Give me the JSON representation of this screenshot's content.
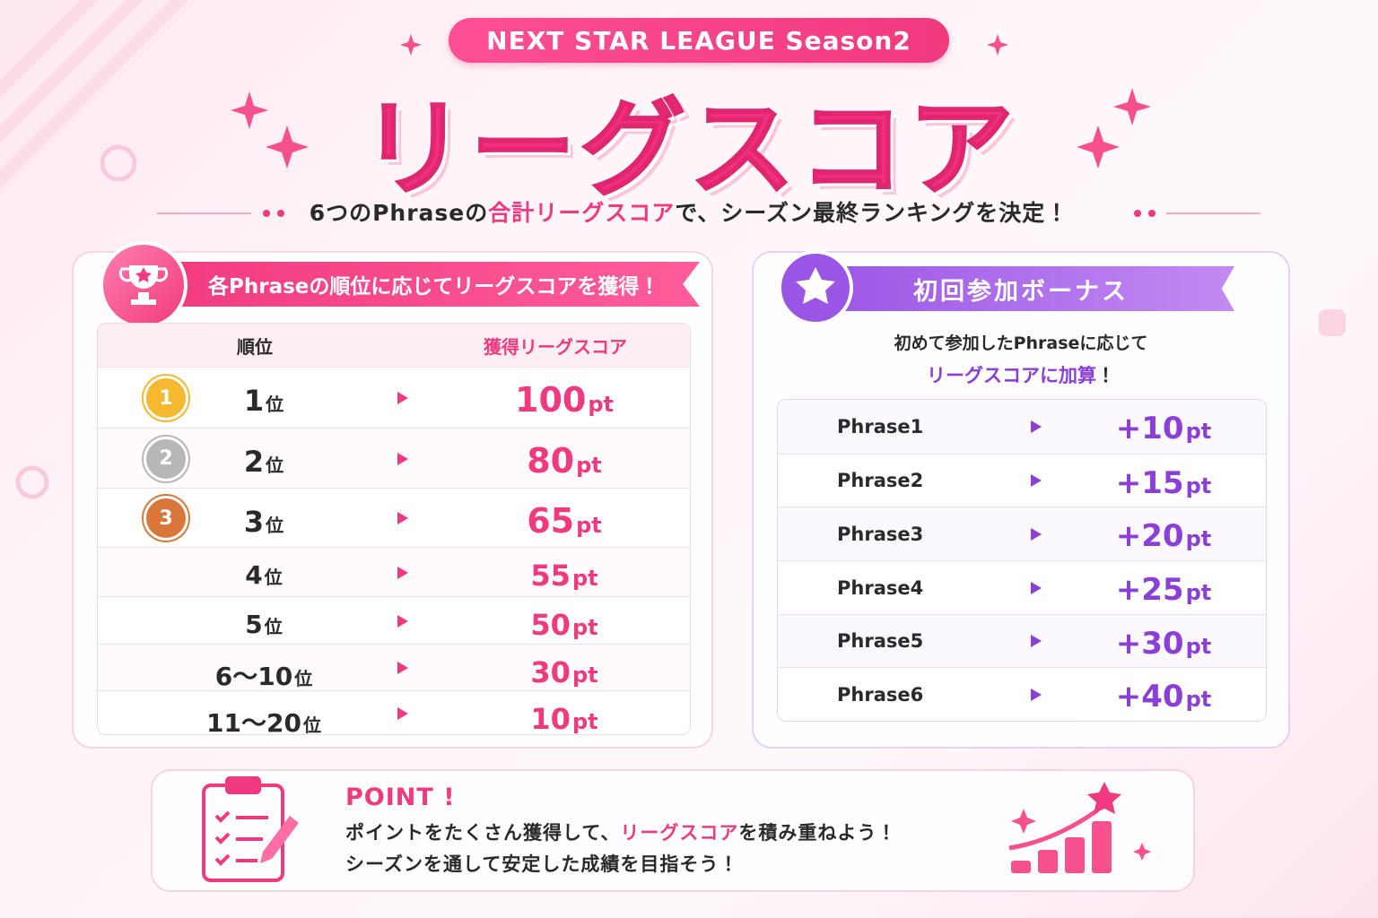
{
  "header": {
    "badge": "NEXT STAR LEAGUE Season2",
    "title": "リーグスコア",
    "subtitle": [
      "6つのPhraseの",
      "合計リーグスコア",
      "で、シーズン最終ランキングを決定！"
    ]
  },
  "rank_panel": {
    "heading": "各Phraseの順位に応じてリーグスコアを獲得！",
    "columns": [
      "順位",
      "獲得リーグスコア"
    ],
    "rows": [
      {
        "medal": "1",
        "rank": "1",
        "suffix": "位",
        "score": "100",
        "unit": "pt"
      },
      {
        "medal": "2",
        "rank": "2",
        "suffix": "位",
        "score": "80",
        "unit": "pt"
      },
      {
        "medal": "3",
        "rank": "3",
        "suffix": "位",
        "score": "65",
        "unit": "pt"
      },
      {
        "rank": "4",
        "suffix": "位",
        "score": "55",
        "unit": "pt"
      },
      {
        "rank": "5",
        "suffix": "位",
        "score": "50",
        "unit": "pt"
      },
      {
        "rank": "6〜10",
        "suffix": "位",
        "score": "30",
        "unit": "pt"
      },
      {
        "rank": "11〜20",
        "suffix": "位",
        "score": "10",
        "unit": "pt"
      }
    ]
  },
  "bonus_panel": {
    "heading": "初回参加ボーナス",
    "description": [
      "初めて参加したPhraseに応じて",
      "リーグスコアに加算",
      "！"
    ],
    "rows": [
      {
        "phrase": "Phrase1",
        "value": "+10",
        "unit": "pt"
      },
      {
        "phrase": "Phrase2",
        "value": "+15",
        "unit": "pt"
      },
      {
        "phrase": "Phrase3",
        "value": "+20",
        "unit": "pt"
      },
      {
        "phrase": "Phrase4",
        "value": "+25",
        "unit": "pt"
      },
      {
        "phrase": "Phrase5",
        "value": "+30",
        "unit": "pt"
      },
      {
        "phrase": "Phrase6",
        "value": "+40",
        "unit": "pt"
      }
    ]
  },
  "point": {
    "label": "POINT !",
    "line1": [
      "ポイントをたくさん獲得して、",
      "リーグスコア",
      "を積み重ねよう！"
    ],
    "line2": "シーズンを通して安定した成績を目指そう！"
  }
}
